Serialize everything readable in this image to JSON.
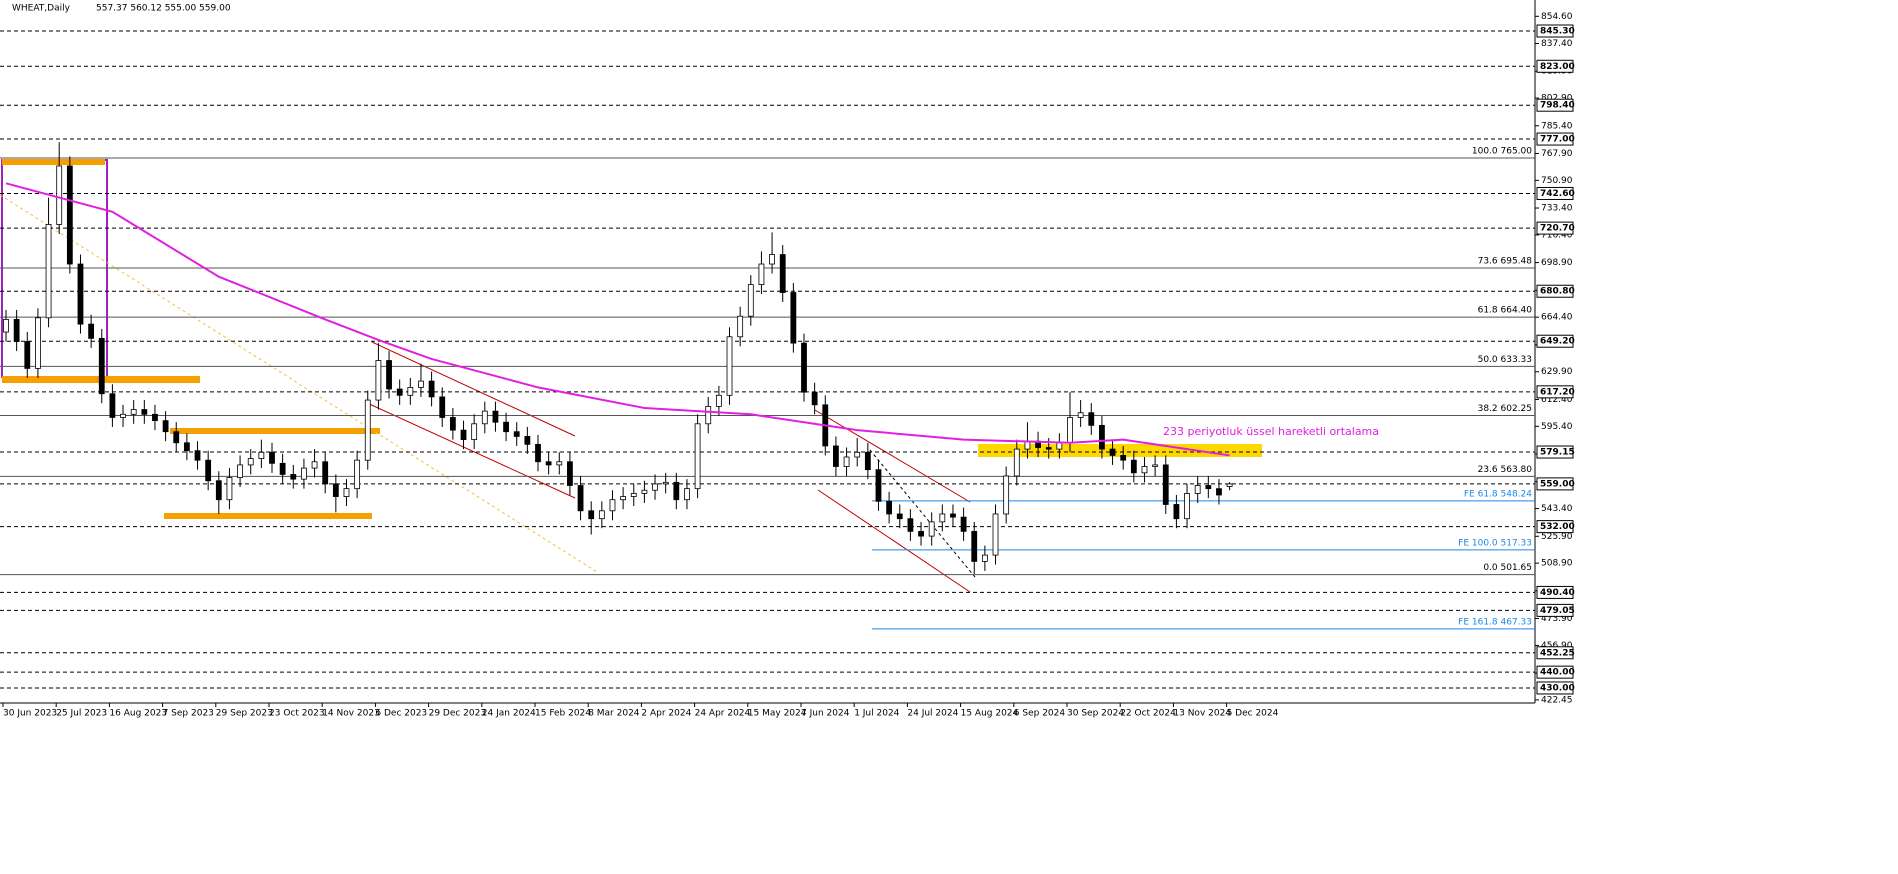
{
  "chart_data": {
    "type": "candlestick",
    "title": "WHEAT,Daily",
    "ohlc_label": "557.37 560.12 555.00 559.00",
    "annotation": "233 periyotluk üssel hareketli ortalama",
    "categories": [
      "30 Jun 2023",
      null,
      null,
      null,
      null,
      "25 Jul 2023",
      null,
      null,
      null,
      null,
      "16 Aug 2023",
      null,
      null,
      null,
      null,
      "7 Sep 2023",
      null,
      null,
      null,
      null,
      "29 Sep 2023",
      null,
      null,
      null,
      null,
      "23 Oct 2023",
      null,
      null,
      null,
      null,
      "14 Nov 2023",
      null,
      null,
      null,
      null,
      "6 Dec 2023",
      null,
      null,
      null,
      null,
      "29 Dec 2023",
      null,
      null,
      null,
      null,
      "24 Jan 2024",
      null,
      null,
      null,
      null,
      "15 Feb 2024",
      null,
      null,
      null,
      null,
      "8 Mar 2024",
      null,
      null,
      null,
      null,
      "2 Apr 2024",
      null,
      null,
      null,
      null,
      "24 Apr 2024",
      null,
      null,
      null,
      null,
      "15 May 2024",
      null,
      null,
      null,
      null,
      "7 Jun 2024",
      null,
      null,
      null,
      null,
      "1 Jul 2024",
      null,
      null,
      null,
      null,
      "24 Jul 2024",
      null,
      null,
      null,
      null,
      "15 Aug 2024",
      null,
      null,
      null,
      null,
      "6 Sep 2024",
      null,
      null,
      null,
      null,
      "30 Sep 2024",
      null,
      null,
      null,
      null,
      "22 Oct 2024",
      null,
      null,
      null,
      null,
      "13 Nov 2024",
      null,
      null,
      null,
      null,
      "5 Dec 2024"
    ],
    "open": [
      655,
      663,
      649,
      632,
      664,
      723,
      760,
      698,
      660,
      651,
      616,
      601,
      603,
      606,
      603,
      599,
      592,
      585,
      580,
      574,
      561,
      549,
      563,
      571,
      575,
      579,
      572,
      565,
      562,
      569,
      573,
      559,
      551,
      556,
      574,
      612,
      637,
      619,
      615,
      620,
      624,
      614,
      601,
      593,
      587,
      597,
      605,
      598,
      592,
      589,
      584,
      573,
      571,
      573,
      558,
      542,
      537,
      542,
      549,
      551,
      553,
      555,
      559,
      560,
      549,
      556,
      597,
      608,
      615,
      652,
      665,
      685,
      698,
      704,
      680,
      648,
      617,
      609,
      583,
      570,
      576,
      579,
      568,
      548,
      540,
      537,
      529,
      526,
      535,
      540,
      538,
      529,
      510,
      514,
      540,
      564,
      581,
      586,
      582,
      581,
      585,
      601,
      604,
      596,
      581,
      577,
      574,
      566,
      570,
      571,
      546,
      537,
      553,
      558,
      556,
      557.37
    ],
    "high": [
      669,
      669,
      655,
      670,
      740,
      775,
      766,
      704,
      666,
      657,
      622,
      609,
      612,
      612,
      609,
      605,
      598,
      591,
      586,
      580,
      567,
      569,
      577,
      581,
      587,
      585,
      578,
      571,
      575,
      581,
      579,
      565,
      562,
      580,
      618,
      648,
      643,
      625,
      626,
      635,
      630,
      620,
      607,
      599,
      603,
      611,
      611,
      604,
      598,
      595,
      590,
      579,
      579,
      579,
      564,
      548,
      548,
      555,
      557,
      559,
      561,
      565,
      566,
      566,
      562,
      603,
      614,
      621,
      658,
      671,
      691,
      706,
      718,
      710,
      686,
      654,
      623,
      615,
      589,
      582,
      588,
      585,
      574,
      554,
      546,
      543,
      535,
      541,
      546,
      546,
      544,
      535,
      520,
      546,
      570,
      587,
      598,
      592,
      588,
      591,
      617,
      612,
      610,
      602,
      587,
      583,
      580,
      576,
      577,
      577,
      552,
      559,
      564,
      564,
      562,
      560.12
    ],
    "low": [
      649,
      643,
      626,
      626,
      658,
      717,
      692,
      654,
      645,
      610,
      595,
      595,
      597,
      597,
      593,
      586,
      579,
      574,
      568,
      555,
      540,
      543,
      557,
      565,
      569,
      566,
      559,
      556,
      556,
      563,
      553,
      541,
      545,
      550,
      568,
      606,
      613,
      609,
      609,
      614,
      608,
      595,
      587,
      581,
      581,
      591,
      592,
      586,
      583,
      578,
      567,
      565,
      565,
      552,
      536,
      527,
      531,
      536,
      543,
      545,
      547,
      549,
      553,
      543,
      543,
      550,
      591,
      602,
      609,
      646,
      659,
      679,
      692,
      674,
      642,
      611,
      603,
      577,
      564,
      564,
      570,
      562,
      542,
      534,
      531,
      523,
      520,
      520,
      529,
      532,
      523,
      502,
      504,
      508,
      534,
      558,
      575,
      576,
      575,
      575,
      579,
      595,
      590,
      575,
      571,
      568,
      560,
      560,
      564,
      540,
      531,
      531,
      547,
      550,
      546,
      555
    ],
    "close": [
      663,
      649,
      632,
      664,
      723,
      760,
      698,
      660,
      651,
      616,
      601,
      603,
      606,
      603,
      599,
      592,
      585,
      580,
      574,
      561,
      549,
      563,
      571,
      575,
      579,
      572,
      565,
      562,
      569,
      573,
      559,
      551,
      556,
      574,
      612,
      637,
      619,
      615,
      620,
      624,
      614,
      601,
      593,
      587,
      597,
      605,
      598,
      592,
      589,
      584,
      573,
      571,
      573,
      558,
      542,
      537,
      542,
      549,
      551,
      553,
      555,
      559,
      560,
      549,
      556,
      597,
      608,
      615,
      652,
      665,
      685,
      698,
      704,
      680,
      648,
      617,
      609,
      583,
      570,
      576,
      579,
      568,
      548,
      540,
      537,
      529,
      526,
      535,
      540,
      538,
      529,
      510,
      514,
      540,
      564,
      581,
      586,
      582,
      581,
      585,
      601,
      604,
      596,
      581,
      577,
      574,
      566,
      570,
      571,
      546,
      537,
      553,
      558,
      556,
      552,
      559
    ],
    "ma": {
      "color": "#e020e0",
      "x": [
        0,
        10,
        20,
        30,
        35,
        40,
        50,
        60,
        70,
        80,
        90,
        100,
        105,
        115
      ],
      "values": [
        749,
        731,
        690,
        663,
        650,
        638,
        620,
        607,
        603,
        593,
        587,
        585,
        587,
        577
      ]
    },
    "ylim": [
      420.5,
      864.9
    ],
    "yticks": [
      {
        "value": 854.6,
        "label": "854.60"
      },
      {
        "value": 837.4,
        "label": "837.40"
      },
      {
        "value": 819.9,
        "label": "819.90"
      },
      {
        "value": 802.9,
        "label": "802.90"
      },
      {
        "value": 785.4,
        "label": "785.40"
      },
      {
        "value": 767.9,
        "label": "767.90"
      },
      {
        "value": 750.9,
        "label": "750.90"
      },
      {
        "value": 733.4,
        "label": "733.40"
      },
      {
        "value": 716.4,
        "label": "716.40"
      },
      {
        "value": 698.9,
        "label": "698.90"
      },
      {
        "value": 681.4,
        "label": "681.40"
      },
      {
        "value": 664.4,
        "label": "664.40"
      },
      {
        "value": 646.9,
        "label": "646.90"
      },
      {
        "value": 629.9,
        "label": "629.90"
      },
      {
        "value": 612.4,
        "label": "612.40"
      },
      {
        "value": 595.4,
        "label": "595.40"
      },
      {
        "value": 577.9,
        "label": "577.90"
      },
      {
        "value": 560.4,
        "label": "560.40"
      },
      {
        "value": 543.4,
        "label": "543.40"
      },
      {
        "value": 525.9,
        "label": "525.90"
      },
      {
        "value": 508.9,
        "label": "508.90"
      },
      {
        "value": 491.4,
        "label": "491.40"
      },
      {
        "value": 473.9,
        "label": "473.90"
      },
      {
        "value": 456.9,
        "label": "456.90"
      },
      {
        "value": 439.4,
        "label": "439.40"
      },
      {
        "value": 422.45,
        "label": "422.45"
      }
    ],
    "levels": [
      {
        "value": 845.3,
        "label": "845.30"
      },
      {
        "value": 823,
        "label": "823.00"
      },
      {
        "value": 798.4,
        "label": "798.40"
      },
      {
        "value": 777,
        "label": "777.00"
      },
      {
        "value": 742.6,
        "label": "742.60"
      },
      {
        "value": 720.7,
        "label": "720.70"
      },
      {
        "value": 680.8,
        "label": "680.80"
      },
      {
        "value": 649.2,
        "label": "649.20"
      },
      {
        "value": 617.2,
        "label": "617.20"
      },
      {
        "value": 579.15,
        "label": "579.15"
      },
      {
        "value": 559,
        "label": "559.00"
      },
      {
        "value": 532,
        "label": "532.00"
      },
      {
        "value": 490.4,
        "label": "490.40"
      },
      {
        "value": 479.05,
        "label": "479.05"
      },
      {
        "value": 452.25,
        "label": "452.25"
      },
      {
        "value": 440,
        "label": "440.00"
      },
      {
        "value": 430,
        "label": "430.00"
      }
    ],
    "fib": [
      {
        "value": 765,
        "label": "100.0 765.00"
      },
      {
        "value": 695.48,
        "label": "73.6 695.48"
      },
      {
        "value": 664.4,
        "label": "61.8 664.40"
      },
      {
        "value": 633.33,
        "label": "50.0 633.33"
      },
      {
        "value": 602.25,
        "label": "38.2 602.25"
      },
      {
        "value": 563.8,
        "label": "23.6 563.80"
      },
      {
        "value": 501.65,
        "label": "0.0 501.65"
      }
    ],
    "fe": [
      {
        "value": 548.24,
        "label": "FE 61.8 548.24"
      },
      {
        "value": 517.33,
        "label": "FE 100.0 517.33"
      },
      {
        "value": 467.33,
        "label": "FE 161.8 467.33"
      }
    ],
    "fe_color": "#1e88e5"
  }
}
